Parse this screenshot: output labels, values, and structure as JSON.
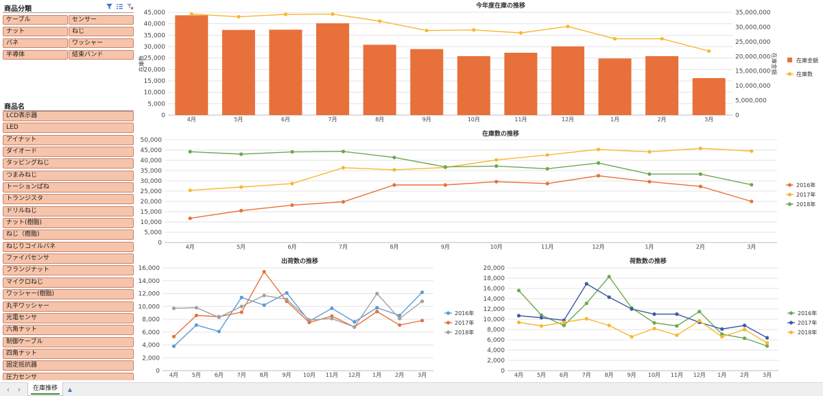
{
  "colors": {
    "orange": "#e8703a",
    "yellow": "#f7b731",
    "green": "#6aa84f",
    "blue": "#5b9bd5",
    "gray": "#a0a0a0",
    "navy": "#3b5ba5",
    "chip_fill": "#f6c4aa"
  },
  "slicer_category": {
    "title": "商品分類",
    "icons": [
      "filter-icon",
      "multi-select-icon",
      "clear-filter-icon"
    ],
    "items": [
      "ケーブル",
      "センサー",
      "ナット",
      "ねじ",
      "バネ",
      "ワッシャー",
      "半導体",
      "結束バンド"
    ]
  },
  "slicer_product": {
    "title": "商品名",
    "items": [
      "LCD表示器",
      "LED",
      "アイナット",
      "ダイオード",
      "タッピングねじ",
      "つまみねじ",
      "トーションばね",
      "トランジスタ",
      "ドリルねじ",
      "ナット(樹脂)",
      "ねじ（樹脂)",
      "ねじりコイルバネ",
      "ファイバセンサ",
      "フランジナット",
      "マイクロねじ",
      "ワッシャー(樹脂)",
      "丸平ワッシャー",
      "光電センサ",
      "六角ナット",
      "制御ケーブル",
      "四角ナット",
      "固定抵抗器",
      "圧力センサ"
    ]
  },
  "chart_data": [
    {
      "type": "bar",
      "title": "今年度在庫の推移",
      "categories": [
        "4月",
        "5月",
        "6月",
        "7月",
        "8月",
        "9月",
        "10月",
        "11月",
        "12月",
        "1月",
        "2月",
        "3月"
      ],
      "ylabel": "在庫数",
      "y2label": "在庫金額",
      "ylim": [
        0,
        45000
      ],
      "yticks": [
        "0",
        "5,000",
        "10,000",
        "15,000",
        "20,000",
        "25,000",
        "30,000",
        "35,000",
        "40,000",
        "45,000"
      ],
      "y2lim": [
        0,
        35000000
      ],
      "y2ticks": [
        "0",
        "5,000,000",
        "10,000,000",
        "15,000,000",
        "20,000,000",
        "25,000,000",
        "30,000,000",
        "35,000,000"
      ],
      "series": [
        {
          "name": "在庫金額",
          "kind": "bar",
          "axis": "left",
          "color": "#e8703a",
          "values": [
            43700,
            37300,
            37400,
            40200,
            30800,
            28900,
            25800,
            27300,
            30100,
            24800,
            25800,
            16200
          ]
        },
        {
          "name": "在庫数",
          "kind": "line",
          "axis": "right",
          "color": "#f7b731",
          "values": [
            34400000,
            33500000,
            34300000,
            34400000,
            32000000,
            28800000,
            29000000,
            28000000,
            30200000,
            26000000,
            26000000,
            21800000
          ]
        }
      ],
      "legend": "right"
    },
    {
      "type": "line",
      "title": "在庫数の推移",
      "categories": [
        "4月",
        "5月",
        "6月",
        "7月",
        "8月",
        "9月",
        "10月",
        "11月",
        "12月",
        "1月",
        "2月",
        "3月"
      ],
      "ylim": [
        0,
        50000
      ],
      "yticks": [
        "0",
        "5,000",
        "10,000",
        "15,000",
        "20,000",
        "25,000",
        "30,000",
        "35,000",
        "40,000",
        "45,000",
        "50,000"
      ],
      "series": [
        {
          "name": "2016年",
          "color": "#e8703a",
          "values": [
            11800,
            15500,
            18200,
            19800,
            28000,
            28000,
            29600,
            28700,
            32500,
            29600,
            27300,
            20000
          ]
        },
        {
          "name": "2017年",
          "color": "#f7b731",
          "values": [
            25400,
            27000,
            28700,
            36400,
            35400,
            36500,
            40200,
            42600,
            45300,
            44100,
            45800,
            44500
          ]
        },
        {
          "name": "2018年",
          "color": "#6aa84f",
          "values": [
            44200,
            43000,
            44100,
            44300,
            41400,
            36800,
            37200,
            35900,
            38700,
            33300,
            33300,
            28100
          ]
        }
      ],
      "legend": "right"
    },
    {
      "type": "line",
      "title": "出荷数の推移",
      "categories": [
        "4月",
        "5月",
        "6月",
        "7月",
        "8月",
        "9月",
        "10月",
        "11月",
        "12月",
        "1月",
        "2月",
        "3月"
      ],
      "ylim": [
        0,
        16000
      ],
      "yticks": [
        "0",
        "2,000",
        "4,000",
        "6,000",
        "8,000",
        "10,000",
        "12,000",
        "14,000",
        "16,000"
      ],
      "series": [
        {
          "name": "2016年",
          "color": "#5b9bd5",
          "values": [
            3800,
            7100,
            6100,
            11400,
            10200,
            12100,
            7700,
            9700,
            7600,
            9800,
            8600,
            12200
          ]
        },
        {
          "name": "2017年",
          "color": "#e8703a",
          "values": [
            5300,
            8600,
            8400,
            9100,
            15400,
            10800,
            7500,
            8500,
            6800,
            9200,
            7100,
            7800
          ]
        },
        {
          "name": "2018年",
          "color": "#a0a0a0",
          "values": [
            9700,
            9800,
            8300,
            10000,
            11700,
            11100,
            7900,
            8100,
            6800,
            12000,
            8100,
            10800
          ]
        }
      ],
      "legend": "right"
    },
    {
      "type": "line",
      "title": "荷数数の推移",
      "categories": [
        "4月",
        "5月",
        "6月",
        "7月",
        "8月",
        "9月",
        "10月",
        "11月",
        "12月",
        "1月",
        "2月",
        "3月"
      ],
      "ylim": [
        0,
        20000
      ],
      "yticks": [
        "0",
        "2,000",
        "4,000",
        "6,000",
        "8,000",
        "10,000",
        "12,000",
        "14,000",
        "16,000",
        "18,000",
        "20,000"
      ],
      "series": [
        {
          "name": "2016年",
          "color": "#6aa84f",
          "values": [
            15600,
            10800,
            8800,
            13100,
            18300,
            12200,
            9300,
            8700,
            11500,
            7100,
            6300,
            4800
          ]
        },
        {
          "name": "2017年",
          "color": "#3b5ba5",
          "values": [
            10700,
            10300,
            9800,
            16900,
            14300,
            12000,
            11000,
            11000,
            9400,
            8100,
            8800,
            6400
          ]
        },
        {
          "name": "2018年",
          "color": "#f7b731",
          "values": [
            9400,
            8700,
            9400,
            10100,
            8800,
            6600,
            8200,
            6900,
            9700,
            6600,
            8000,
            5400
          ]
        }
      ],
      "legend": "right"
    }
  ],
  "tabbar": {
    "prev_label": "‹",
    "next_label": "›",
    "sheet_tab_label": "在庫推移",
    "add_label": "▲"
  }
}
